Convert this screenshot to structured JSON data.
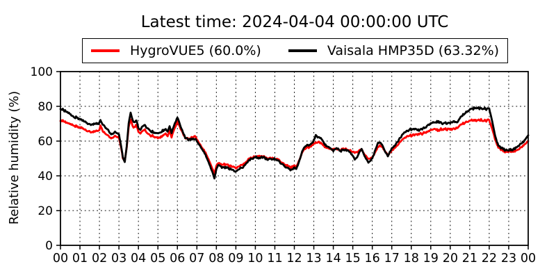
{
  "title": "Latest time: 2024-04-04 00:00:00 UTC",
  "chart_data": {
    "type": "line",
    "title": "Latest time: 2024-04-04 00:00:00 UTC",
    "xlabel": "",
    "ylabel": "Relative humidity (%)",
    "ylim": [
      0,
      100
    ],
    "xlim_hours": [
      0,
      24
    ],
    "y_ticks": [
      0,
      20,
      40,
      60,
      80,
      100
    ],
    "x_tick_labels": [
      "00",
      "01",
      "02",
      "03",
      "04",
      "05",
      "06",
      "07",
      "08",
      "09",
      "10",
      "11",
      "12",
      "13",
      "14",
      "15",
      "16",
      "17",
      "18",
      "19",
      "20",
      "21",
      "22",
      "23",
      "00"
    ],
    "grid": "dotted",
    "legend_position": "top",
    "noise_amplitude_pct": 0.9,
    "x_hours": [
      0,
      0.2,
      0.4,
      0.6,
      0.8,
      1,
      1.2,
      1.4,
      1.6,
      1.8,
      2,
      2.05,
      2.2,
      2.4,
      2.6,
      2.8,
      3,
      3.1,
      3.2,
      3.3,
      3.4,
      3.5,
      3.6,
      3.7,
      3.8,
      3.9,
      4,
      4.1,
      4.2,
      4.3,
      4.4,
      4.5,
      4.6,
      4.8,
      5,
      5.2,
      5.4,
      5.5,
      5.6,
      5.7,
      5.8,
      6,
      6.2,
      6.4,
      6.6,
      6.8,
      6.9,
      7,
      7.2,
      7.4,
      7.6,
      7.8,
      7.9,
      8,
      8.1,
      8.2,
      8.4,
      8.6,
      8.8,
      9,
      9.2,
      9.4,
      9.6,
      9.8,
      10,
      10.2,
      10.4,
      10.6,
      10.8,
      11,
      11.2,
      11.4,
      11.6,
      11.8,
      12,
      12.1,
      12.3,
      12.4,
      12.5,
      12.7,
      12.9,
      13,
      13.1,
      13.2,
      13.4,
      13.6,
      13.8,
      14,
      14.2,
      14.4,
      14.6,
      14.8,
      15,
      15.1,
      15.2,
      15.3,
      15.45,
      15.6,
      15.8,
      16,
      16.2,
      16.3,
      16.5,
      16.65,
      16.8,
      16.9,
      17,
      17.2,
      17.4,
      17.6,
      17.8,
      18,
      18.2,
      18.4,
      18.6,
      18.8,
      19,
      19.2,
      19.4,
      19.6,
      19.8,
      20,
      20.2,
      20.35,
      20.5,
      20.7,
      20.9,
      21.1,
      21.3,
      21.5,
      21.7,
      21.85,
      21.95,
      22,
      22.1,
      22.2,
      22.3,
      22.4,
      22.5,
      22.6,
      22.8,
      23,
      23.2,
      23.4,
      23.6,
      23.8,
      24
    ],
    "series": [
      {
        "name": "HygroVUE5 (60.0%)",
        "color": "#ff0000",
        "latest_value_pct": 60.0,
        "values": [
          72.3,
          71.3,
          70.2,
          69.2,
          68.6,
          68,
          66.8,
          65.6,
          65.2,
          65.8,
          66.4,
          68.8,
          65.2,
          63.5,
          61.3,
          62.7,
          62,
          57,
          50.5,
          48.5,
          56.5,
          68,
          72.6,
          68.6,
          67.8,
          69.4,
          65.4,
          64.4,
          66,
          66.8,
          65.4,
          64.2,
          63.4,
          62.7,
          61.8,
          62.8,
          64.4,
          62.9,
          65.8,
          62.2,
          65.6,
          71.2,
          66.3,
          61.8,
          61,
          62.4,
          63.2,
          60.8,
          57.4,
          54,
          49.6,
          43.9,
          41.2,
          46,
          47.8,
          46.5,
          46.6,
          46.1,
          45.4,
          44.8,
          45.6,
          46.8,
          49,
          50.6,
          51.3,
          50.9,
          51.1,
          50.3,
          49.9,
          50.1,
          49.2,
          47.4,
          46,
          44.8,
          45.4,
          45,
          50.2,
          53.4,
          55.3,
          56.2,
          57.4,
          58.4,
          59.3,
          59.5,
          58.4,
          56.4,
          55.5,
          55.1,
          55.4,
          54.9,
          55.4,
          54.8,
          53.8,
          53.4,
          53.6,
          54.4,
          55.3,
          52.4,
          49.6,
          50.6,
          54.4,
          57.2,
          56.9,
          54.2,
          51.9,
          53.4,
          54.9,
          56.4,
          59.2,
          61.3,
          62.6,
          63.3,
          63.6,
          63.9,
          64.4,
          65.2,
          66.3,
          66.7,
          66.3,
          67,
          66.6,
          66.7,
          67.6,
          67.1,
          69.3,
          70.4,
          71.3,
          71.9,
          72.2,
          72.1,
          71.9,
          71.7,
          72.4,
          71.9,
          68.8,
          65.3,
          61,
          57.8,
          55.9,
          54.9,
          54,
          53.8,
          54.2,
          54.6,
          56.1,
          57.9,
          60
        ]
      },
      {
        "name": "Vaisala HMP35D (63.32%)",
        "color": "#000000",
        "latest_value_pct": 63.32,
        "values": [
          79,
          77.6,
          76.2,
          74.6,
          73.6,
          72.6,
          71.4,
          70,
          69.6,
          70.2,
          70.6,
          71.8,
          69,
          67,
          63.6,
          65,
          64,
          58,
          51,
          48,
          57,
          70,
          76.5,
          72,
          70.5,
          72,
          67.6,
          66.6,
          68.6,
          69.6,
          68,
          67,
          66,
          65.2,
          64.4,
          65.6,
          67.2,
          65.6,
          68.4,
          64.8,
          68,
          73.5,
          67.5,
          62,
          60.5,
          61.2,
          61.6,
          60,
          56.5,
          53,
          48,
          42,
          38.5,
          44,
          46.5,
          45,
          44.8,
          44.2,
          43.6,
          42.8,
          44,
          45.4,
          48,
          50,
          50.8,
          50.3,
          50.6,
          49.8,
          49.4,
          49.8,
          48.5,
          46.5,
          44.8,
          43.2,
          44.4,
          43.8,
          50,
          54,
          56.5,
          57.4,
          58.8,
          60.5,
          63.2,
          62.4,
          61,
          57.5,
          56.2,
          54.6,
          55.8,
          54.4,
          55.2,
          54.4,
          51.5,
          49.4,
          50.2,
          52.8,
          55.8,
          51.5,
          47.6,
          50,
          56,
          59.4,
          58.3,
          54,
          51.4,
          53.8,
          55.8,
          58,
          61.4,
          64.2,
          66,
          66.8,
          67.2,
          66.2,
          67,
          68.6,
          70,
          70.8,
          71.2,
          70.4,
          70,
          70.5,
          71.6,
          70.4,
          73.4,
          75.4,
          77.4,
          78.6,
          79,
          79.1,
          78.7,
          78.3,
          79.2,
          78.6,
          74,
          68.7,
          63.2,
          59.2,
          57,
          55.9,
          55.1,
          54.9,
          55.3,
          56.3,
          58.4,
          60.2,
          63.32
        ]
      }
    ]
  }
}
